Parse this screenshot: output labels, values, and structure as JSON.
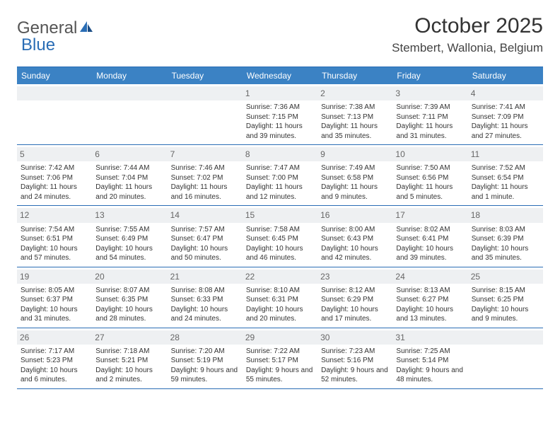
{
  "logo": {
    "text1": "General",
    "text2": "Blue"
  },
  "title": "October 2025",
  "location": "Stembert, Wallonia, Belgium",
  "header_bg": "#3b82c4",
  "rule_color": "#2a6db5",
  "day_num_bg": "#eef0f2",
  "text_color": "#333333",
  "days_of_week": [
    "Sunday",
    "Monday",
    "Tuesday",
    "Wednesday",
    "Thursday",
    "Friday",
    "Saturday"
  ],
  "weeks": [
    [
      null,
      null,
      null,
      {
        "n": "1",
        "sr": "Sunrise: 7:36 AM",
        "ss": "Sunset: 7:15 PM",
        "dl": "Daylight: 11 hours and 39 minutes."
      },
      {
        "n": "2",
        "sr": "Sunrise: 7:38 AM",
        "ss": "Sunset: 7:13 PM",
        "dl": "Daylight: 11 hours and 35 minutes."
      },
      {
        "n": "3",
        "sr": "Sunrise: 7:39 AM",
        "ss": "Sunset: 7:11 PM",
        "dl": "Daylight: 11 hours and 31 minutes."
      },
      {
        "n": "4",
        "sr": "Sunrise: 7:41 AM",
        "ss": "Sunset: 7:09 PM",
        "dl": "Daylight: 11 hours and 27 minutes."
      }
    ],
    [
      {
        "n": "5",
        "sr": "Sunrise: 7:42 AM",
        "ss": "Sunset: 7:06 PM",
        "dl": "Daylight: 11 hours and 24 minutes."
      },
      {
        "n": "6",
        "sr": "Sunrise: 7:44 AM",
        "ss": "Sunset: 7:04 PM",
        "dl": "Daylight: 11 hours and 20 minutes."
      },
      {
        "n": "7",
        "sr": "Sunrise: 7:46 AM",
        "ss": "Sunset: 7:02 PM",
        "dl": "Daylight: 11 hours and 16 minutes."
      },
      {
        "n": "8",
        "sr": "Sunrise: 7:47 AM",
        "ss": "Sunset: 7:00 PM",
        "dl": "Daylight: 11 hours and 12 minutes."
      },
      {
        "n": "9",
        "sr": "Sunrise: 7:49 AM",
        "ss": "Sunset: 6:58 PM",
        "dl": "Daylight: 11 hours and 9 minutes."
      },
      {
        "n": "10",
        "sr": "Sunrise: 7:50 AM",
        "ss": "Sunset: 6:56 PM",
        "dl": "Daylight: 11 hours and 5 minutes."
      },
      {
        "n": "11",
        "sr": "Sunrise: 7:52 AM",
        "ss": "Sunset: 6:54 PM",
        "dl": "Daylight: 11 hours and 1 minute."
      }
    ],
    [
      {
        "n": "12",
        "sr": "Sunrise: 7:54 AM",
        "ss": "Sunset: 6:51 PM",
        "dl": "Daylight: 10 hours and 57 minutes."
      },
      {
        "n": "13",
        "sr": "Sunrise: 7:55 AM",
        "ss": "Sunset: 6:49 PM",
        "dl": "Daylight: 10 hours and 54 minutes."
      },
      {
        "n": "14",
        "sr": "Sunrise: 7:57 AM",
        "ss": "Sunset: 6:47 PM",
        "dl": "Daylight: 10 hours and 50 minutes."
      },
      {
        "n": "15",
        "sr": "Sunrise: 7:58 AM",
        "ss": "Sunset: 6:45 PM",
        "dl": "Daylight: 10 hours and 46 minutes."
      },
      {
        "n": "16",
        "sr": "Sunrise: 8:00 AM",
        "ss": "Sunset: 6:43 PM",
        "dl": "Daylight: 10 hours and 42 minutes."
      },
      {
        "n": "17",
        "sr": "Sunrise: 8:02 AM",
        "ss": "Sunset: 6:41 PM",
        "dl": "Daylight: 10 hours and 39 minutes."
      },
      {
        "n": "18",
        "sr": "Sunrise: 8:03 AM",
        "ss": "Sunset: 6:39 PM",
        "dl": "Daylight: 10 hours and 35 minutes."
      }
    ],
    [
      {
        "n": "19",
        "sr": "Sunrise: 8:05 AM",
        "ss": "Sunset: 6:37 PM",
        "dl": "Daylight: 10 hours and 31 minutes."
      },
      {
        "n": "20",
        "sr": "Sunrise: 8:07 AM",
        "ss": "Sunset: 6:35 PM",
        "dl": "Daylight: 10 hours and 28 minutes."
      },
      {
        "n": "21",
        "sr": "Sunrise: 8:08 AM",
        "ss": "Sunset: 6:33 PM",
        "dl": "Daylight: 10 hours and 24 minutes."
      },
      {
        "n": "22",
        "sr": "Sunrise: 8:10 AM",
        "ss": "Sunset: 6:31 PM",
        "dl": "Daylight: 10 hours and 20 minutes."
      },
      {
        "n": "23",
        "sr": "Sunrise: 8:12 AM",
        "ss": "Sunset: 6:29 PM",
        "dl": "Daylight: 10 hours and 17 minutes."
      },
      {
        "n": "24",
        "sr": "Sunrise: 8:13 AM",
        "ss": "Sunset: 6:27 PM",
        "dl": "Daylight: 10 hours and 13 minutes."
      },
      {
        "n": "25",
        "sr": "Sunrise: 8:15 AM",
        "ss": "Sunset: 6:25 PM",
        "dl": "Daylight: 10 hours and 9 minutes."
      }
    ],
    [
      {
        "n": "26",
        "sr": "Sunrise: 7:17 AM",
        "ss": "Sunset: 5:23 PM",
        "dl": "Daylight: 10 hours and 6 minutes."
      },
      {
        "n": "27",
        "sr": "Sunrise: 7:18 AM",
        "ss": "Sunset: 5:21 PM",
        "dl": "Daylight: 10 hours and 2 minutes."
      },
      {
        "n": "28",
        "sr": "Sunrise: 7:20 AM",
        "ss": "Sunset: 5:19 PM",
        "dl": "Daylight: 9 hours and 59 minutes."
      },
      {
        "n": "29",
        "sr": "Sunrise: 7:22 AM",
        "ss": "Sunset: 5:17 PM",
        "dl": "Daylight: 9 hours and 55 minutes."
      },
      {
        "n": "30",
        "sr": "Sunrise: 7:23 AM",
        "ss": "Sunset: 5:16 PM",
        "dl": "Daylight: 9 hours and 52 minutes."
      },
      {
        "n": "31",
        "sr": "Sunrise: 7:25 AM",
        "ss": "Sunset: 5:14 PM",
        "dl": "Daylight: 9 hours and 48 minutes."
      },
      null
    ]
  ]
}
